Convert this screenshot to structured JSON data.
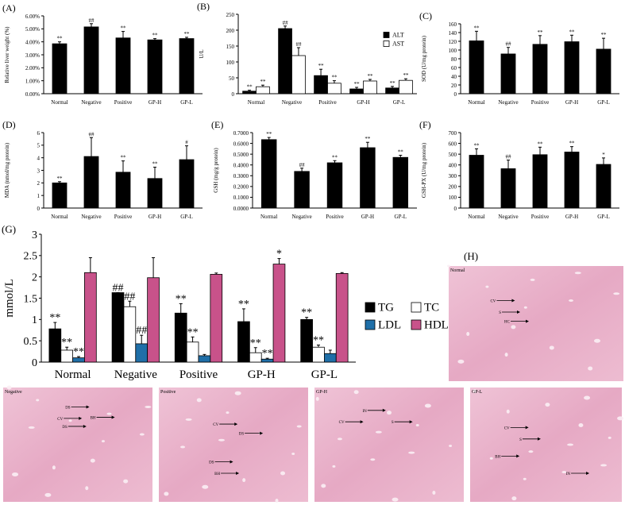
{
  "chart_data": [
    {
      "type": "bar",
      "label": "(A)",
      "y_label": "Relative liver weight (%)",
      "categories": [
        "Normal",
        "Negative",
        "Positive",
        "GP-H",
        "GP-L"
      ],
      "values": [
        3.85,
        5.15,
        4.3,
        4.15,
        4.25
      ],
      "errors": [
        0.15,
        0.25,
        0.5,
        0.1,
        0.1
      ],
      "annotations": [
        "**",
        "##",
        "**",
        "**",
        "**"
      ],
      "color": "#000000",
      "ylim": [
        0,
        6
      ],
      "yticks": [
        {
          "value": 0,
          "label": "0.00%"
        },
        {
          "value": 1,
          "label": "1.00%"
        },
        {
          "value": 2,
          "label": "2.00%"
        },
        {
          "value": 3,
          "label": "3.00%"
        },
        {
          "value": 4,
          "label": "4.00%"
        },
        {
          "value": 5,
          "label": "5.00%"
        },
        {
          "value": 6,
          "label": "6.00%"
        }
      ]
    },
    {
      "type": "bar",
      "label": "(B)",
      "y_label": "U/L",
      "categories": [
        "Normal",
        "Negative",
        "Positive",
        "GP-H",
        "GP-L"
      ],
      "series": [
        {
          "name": "ALT",
          "color": "#000000",
          "values": [
            8,
            205,
            57,
            15,
            18
          ],
          "errors": [
            3,
            8,
            20,
            5,
            5
          ],
          "annotations": [
            "**",
            "##",
            "**",
            "**",
            "**"
          ]
        },
        {
          "name": "AST",
          "color": "#ffffff",
          "values": [
            22,
            120,
            33,
            40,
            42
          ],
          "errors": [
            5,
            25,
            8,
            5,
            5
          ],
          "annotations": [
            "**",
            "##",
            "**",
            "**",
            "**"
          ]
        }
      ],
      "legend": "upper right",
      "ylim": [
        0,
        250
      ],
      "yticks": [
        0,
        50,
        100,
        150,
        200,
        250
      ]
    },
    {
      "type": "bar",
      "label": "(C)",
      "y_label": "SOD (U/mg protein)",
      "categories": [
        "Normal",
        "Negative",
        "Positive",
        "GP-H",
        "GP-L"
      ],
      "values": [
        121,
        91,
        113,
        119,
        102
      ],
      "errors": [
        22,
        15,
        20,
        15,
        25
      ],
      "annotations": [
        "**",
        "##",
        "**",
        "**",
        "**"
      ],
      "color": "#000000",
      "ylim": [
        0,
        160
      ],
      "yticks": [
        0,
        20,
        40,
        60,
        80,
        100,
        120,
        140,
        160
      ]
    },
    {
      "type": "bar",
      "label": "(D)",
      "y_label": "MDA (nmol/mg protein)",
      "categories": [
        "Normal",
        "Negative",
        "Positive",
        "GP-H",
        "GP-L"
      ],
      "values": [
        2.0,
        4.1,
        2.85,
        2.35,
        3.85
      ],
      "errors": [
        0.1,
        1.5,
        0.9,
        0.9,
        1.1
      ],
      "annotations": [
        "**",
        "##",
        "**",
        "**",
        "#"
      ],
      "color": "#000000",
      "ylim": [
        0,
        6
      ],
      "yticks": [
        0,
        1,
        2,
        3,
        4,
        5,
        6
      ]
    },
    {
      "type": "bar",
      "label": "(E)",
      "y_label": "GSH (mg/g protein)",
      "categories": [
        "Normal",
        "Negative",
        "Positive",
        "GP-H",
        "GP-L"
      ],
      "values": [
        0.635,
        0.34,
        0.42,
        0.56,
        0.47
      ],
      "errors": [
        0.02,
        0.03,
        0.02,
        0.05,
        0.02
      ],
      "annotations": [
        "**",
        "##",
        "**",
        "**",
        "**"
      ],
      "color": "#000000",
      "ylim": [
        0,
        0.7
      ],
      "yticks": [
        {
          "value": 0,
          "label": "0.0000"
        },
        {
          "value": 0.1,
          "label": "0.1000"
        },
        {
          "value": 0.2,
          "label": "0.2000"
        },
        {
          "value": 0.3,
          "label": "0.3000"
        },
        {
          "value": 0.4,
          "label": "0.4000"
        },
        {
          "value": 0.5,
          "label": "0.5000"
        },
        {
          "value": 0.6,
          "label": "0.6000"
        },
        {
          "value": 0.7,
          "label": "0.7000"
        }
      ]
    },
    {
      "type": "bar",
      "label": "(F)",
      "y_label": "GSH-PX (U/mg protein)",
      "categories": [
        "Normal",
        "Negative",
        "Positive",
        "GP-H",
        "GP-L"
      ],
      "values": [
        490,
        365,
        495,
        520,
        405
      ],
      "errors": [
        60,
        80,
        70,
        50,
        60
      ],
      "annotations": [
        "**",
        "##",
        "**",
        "**",
        "*"
      ],
      "color": "#000000",
      "ylim": [
        0,
        700
      ],
      "yticks": [
        0,
        100,
        200,
        300,
        400,
        500,
        600,
        700
      ]
    },
    {
      "type": "bar",
      "label": "(G)",
      "y_label": "mmol/L",
      "categories": [
        "Normal",
        "Negative",
        "Positive",
        "GP-H",
        "GP-L"
      ],
      "series": [
        {
          "name": "TG",
          "color": "#000000",
          "values": [
            0.78,
            1.63,
            1.15,
            0.95,
            1.0
          ],
          "errors": [
            0.15,
            0,
            0.22,
            0.3,
            0.05
          ],
          "annotations": [
            "**",
            "##",
            "**",
            "**",
            "**"
          ]
        },
        {
          "name": "TC",
          "color": "#ffffff",
          "values": [
            0.28,
            1.3,
            0.47,
            0.22,
            0.35
          ],
          "errors": [
            0.07,
            0.13,
            0.12,
            0.12,
            0.05
          ],
          "annotations": [
            "**",
            "##",
            "**",
            "**",
            "**"
          ]
        },
        {
          "name": "LDL",
          "color": "#1f6fa8",
          "values": [
            0.1,
            0.43,
            0.15,
            0.07,
            0.2
          ],
          "errors": [
            0.03,
            0.2,
            0.03,
            0.02,
            0.08
          ],
          "annotations": [
            "**",
            "##",
            null,
            "**",
            null
          ]
        },
        {
          "name": "HDL",
          "color": "#c8528a",
          "values": [
            2.1,
            1.98,
            2.06,
            2.3,
            2.08
          ],
          "errors": [
            0.35,
            0.47,
            0.03,
            0.13,
            0.02
          ],
          "annotations": [
            null,
            null,
            null,
            "*",
            null
          ]
        }
      ],
      "legend": "right",
      "ylim": [
        0,
        3
      ],
      "yticks": [
        0,
        0.5,
        1,
        1.5,
        2,
        2.5,
        3
      ]
    }
  ],
  "histology": {
    "label": "(H)",
    "images": [
      {
        "name": "Normal",
        "markers": [
          "CV",
          "S",
          "HC"
        ]
      },
      {
        "name": "Negative",
        "markers": [
          "DS",
          "CV",
          "DS",
          "BH"
        ]
      },
      {
        "name": "Positive",
        "markers": [
          "CV",
          "DS",
          "DS",
          "BH"
        ]
      },
      {
        "name": "GP-H",
        "markers": [
          "IN",
          "CV",
          "S"
        ]
      },
      {
        "name": "GP-L",
        "markers": [
          "CV",
          "S",
          "BH",
          "IN"
        ]
      }
    ]
  }
}
